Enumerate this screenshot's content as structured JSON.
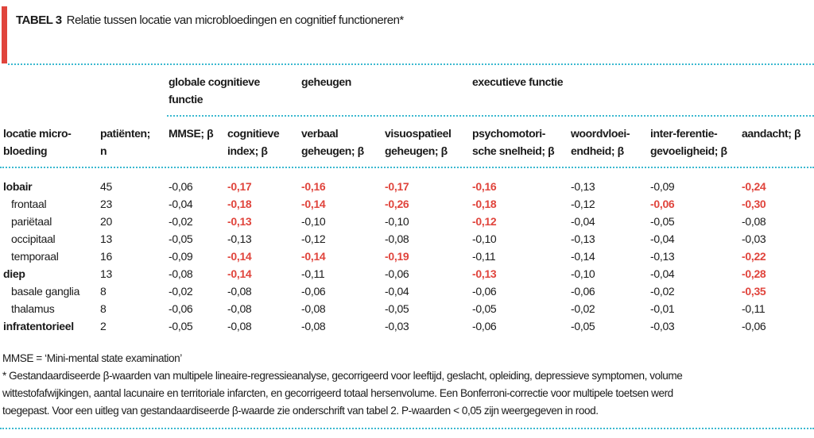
{
  "title": {
    "label": "TABEL 3",
    "text": "Relatie tussen locatie van microbloedingen en cognitief functioneren*"
  },
  "group_headers": {
    "global": [
      "globale cognitieve",
      "functie"
    ],
    "memory": "geheugen",
    "executive": "executieve functie"
  },
  "columns": [
    [
      "locatie micro-",
      "bloeding"
    ],
    [
      "patiënten;",
      "n"
    ],
    [
      "MMSE; β",
      ""
    ],
    [
      "cognitieve",
      "index; β"
    ],
    [
      "verbaal",
      "geheugen; β"
    ],
    [
      "visuospatieel",
      "geheugen; β"
    ],
    [
      "psychomotori-",
      "sche snelheid; β"
    ],
    [
      "woordvloei-",
      "endheid; β"
    ],
    [
      "inter-ferentie-",
      "gevoeligheid; β"
    ],
    [
      "aandacht; β",
      ""
    ]
  ],
  "rows": [
    {
      "label": "lobair",
      "level": "main",
      "n": "45",
      "values": [
        "-0,06",
        "-0,17",
        "-0,16",
        "-0,17",
        "-0,16",
        "-0,13",
        "-0,09",
        "-0,24"
      ],
      "significant": [
        false,
        true,
        true,
        true,
        true,
        false,
        false,
        true
      ]
    },
    {
      "label": "frontaal",
      "level": "sub",
      "n": "23",
      "values": [
        "-0,04",
        "-0,18",
        "-0,14",
        "-0,26",
        "-0,18",
        "-0,12",
        "-0,06",
        "-0,30"
      ],
      "significant": [
        false,
        true,
        true,
        true,
        true,
        false,
        true,
        true
      ]
    },
    {
      "label": "pariëtaal",
      "level": "sub",
      "n": "20",
      "values": [
        "-0,02",
        "-0,13",
        "-0,10",
        "-0,10",
        "-0,12",
        "-0,04",
        "-0,05",
        "-0,08"
      ],
      "significant": [
        false,
        true,
        false,
        false,
        true,
        false,
        false,
        false
      ]
    },
    {
      "label": "occipitaal",
      "level": "sub",
      "n": "13",
      "values": [
        "-0,05",
        "-0,13",
        "-0,12",
        "-0,08",
        "-0,10",
        "-0,13",
        "-0,04",
        "-0,03"
      ],
      "significant": [
        false,
        false,
        false,
        false,
        false,
        false,
        false,
        false
      ]
    },
    {
      "label": "temporaal",
      "level": "sub",
      "n": "16",
      "values": [
        "-0,09",
        "-0,14",
        "-0,14",
        "-0,19",
        "-0,11",
        "-0,14",
        "-0,13",
        "-0,22"
      ],
      "significant": [
        false,
        true,
        true,
        true,
        false,
        false,
        false,
        true
      ]
    },
    {
      "label": "diep",
      "level": "main",
      "n": "13",
      "values": [
        "-0,08",
        "-0,14",
        "-0,11",
        "-0,06",
        "-0,13",
        "-0,10",
        "-0,04",
        "-0,28"
      ],
      "significant": [
        false,
        true,
        false,
        false,
        true,
        false,
        false,
        true
      ]
    },
    {
      "label": "basale ganglia",
      "level": "sub",
      "n": "8",
      "values": [
        "-0,02",
        "-0,08",
        "-0,06",
        "-0,04",
        "-0,06",
        "-0,06",
        "-0,02",
        "-0,35"
      ],
      "significant": [
        false,
        false,
        false,
        false,
        false,
        false,
        false,
        true
      ]
    },
    {
      "label": "thalamus",
      "level": "sub",
      "n": "8",
      "values": [
        "-0,06",
        "-0,08",
        "-0,08",
        "-0,05",
        "-0,05",
        "-0,02",
        "-0,01",
        "-0,11"
      ],
      "significant": [
        false,
        false,
        false,
        false,
        false,
        false,
        false,
        false
      ]
    },
    {
      "label": "infratentorieel",
      "level": "main",
      "n": "2",
      "values": [
        "-0,05",
        "-0,08",
        "-0,08",
        "-0,03",
        "-0,06",
        "-0,05",
        "-0,03",
        "-0,06"
      ],
      "significant": [
        false,
        false,
        false,
        false,
        false,
        false,
        false,
        false
      ]
    }
  ],
  "footnotes": [
    "MMSE = ‘Mini-mental state examination’",
    "* Gestandaardiseerde β-waarden van multipele lineaire-regressieanalyse, gecorrigeerd voor leeftijd, geslacht, opleiding, depressieve symptomen, volume",
    "wittestofafwijkingen, aantal lacunaire en territoriale infarcten, en gecorrigeerd totaal hersenvolume. Een Bonferroni-correctie voor multipele toetsen werd",
    "toegepast. Voor een uitleg van gestandaardiseerde β-waarde zie onderschrift van tabel 2. P-waarden < 0,05 zijn weergegeven in rood."
  ],
  "colors": {
    "accent": "#e0443c",
    "divider": "#3bb9d0"
  }
}
